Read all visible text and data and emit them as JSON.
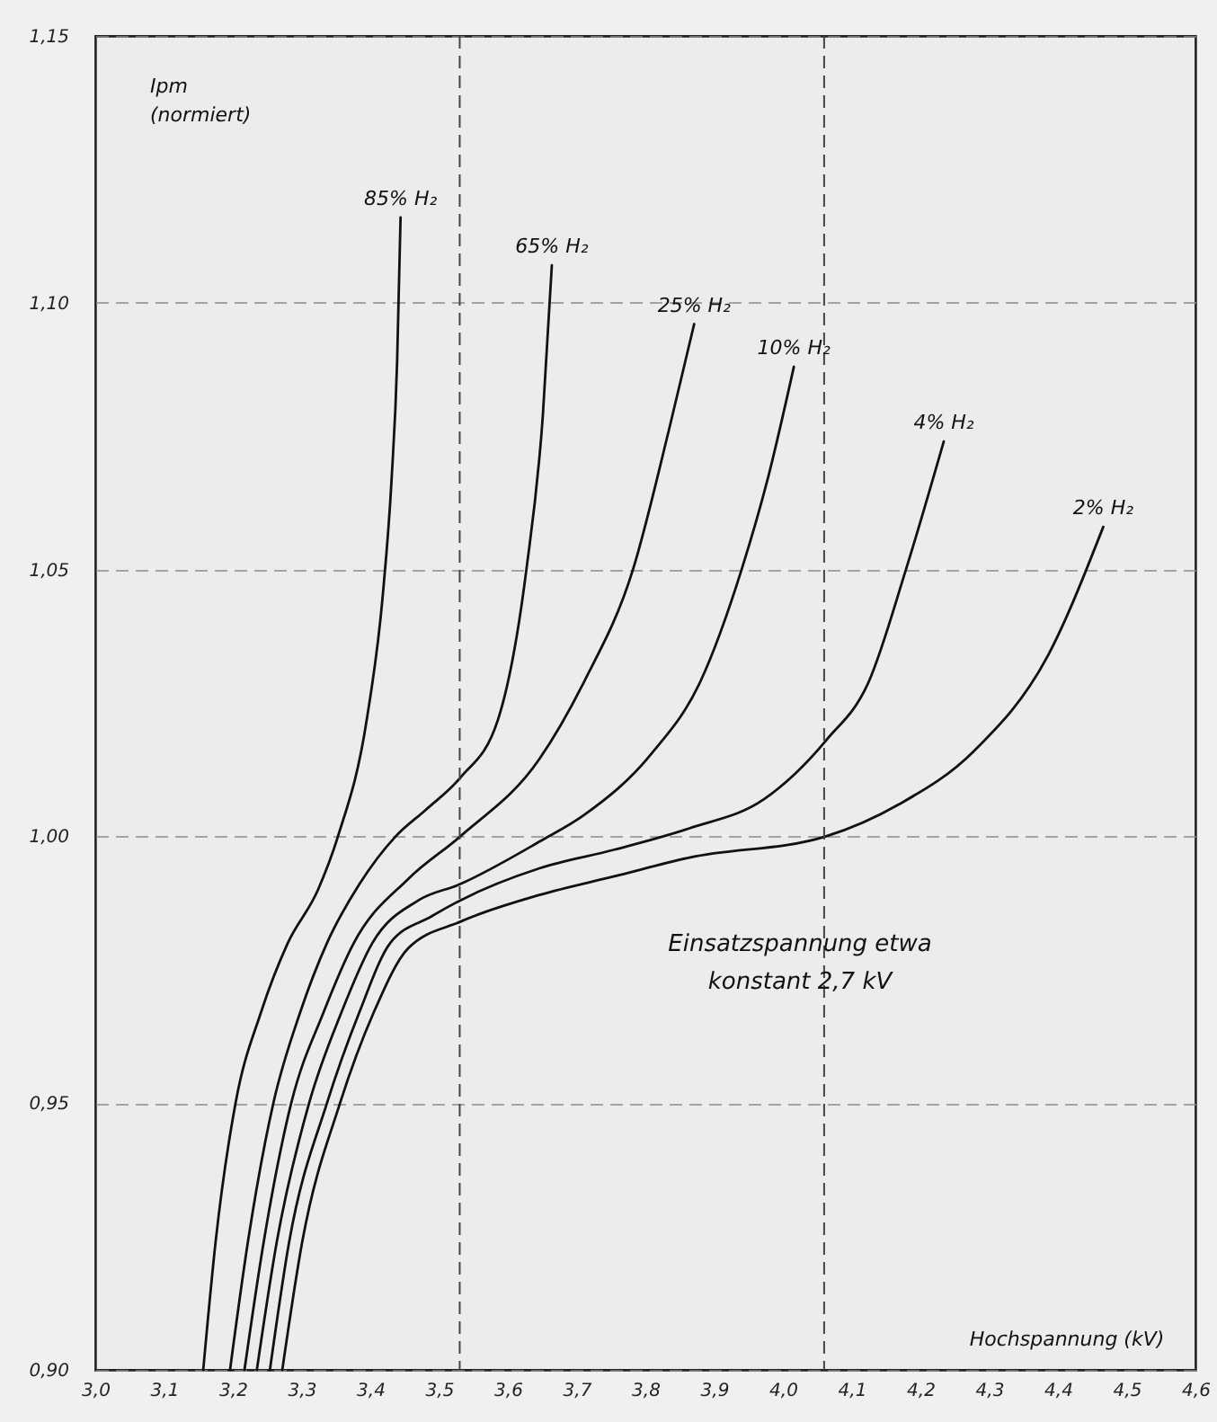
{
  "chart_data": {
    "type": "line",
    "xlabel": "Hochspannung (kV)",
    "ylabel": "Ipm (normiert)",
    "annotations": [
      "Einsatzspannung etwa konstant 2,7 kV"
    ],
    "xlim": [
      3.0,
      4.6
    ],
    "ylim": [
      0.9,
      1.15
    ],
    "xticks": [
      {
        "value": 3.0,
        "label": "3,0"
      },
      {
        "value": 3.1,
        "label": "3,1"
      },
      {
        "value": 3.2,
        "label": "3,2"
      },
      {
        "value": 3.3,
        "label": "3,3"
      },
      {
        "value": 3.4,
        "label": "3,4"
      },
      {
        "value": 3.5,
        "label": "3,5"
      },
      {
        "value": 3.6,
        "label": "3,6"
      },
      {
        "value": 3.7,
        "label": "3,7"
      },
      {
        "value": 3.8,
        "label": "3,8"
      },
      {
        "value": 3.9,
        "label": "3,9"
      },
      {
        "value": 4.0,
        "label": "4,0"
      },
      {
        "value": 4.1,
        "label": "4,1"
      },
      {
        "value": 4.2,
        "label": "4,2"
      },
      {
        "value": 4.3,
        "label": "4,3"
      },
      {
        "value": 4.4,
        "label": "4,4"
      },
      {
        "value": 4.5,
        "label": "4,5"
      },
      {
        "value": 4.6,
        "label": "4,6"
      }
    ],
    "yticks": [
      {
        "value": 0.9,
        "label": "0,90"
      },
      {
        "value": 0.95,
        "label": "0,95"
      },
      {
        "value": 1.0,
        "label": "1,00"
      },
      {
        "value": 1.05,
        "label": "1,05"
      },
      {
        "value": 1.1,
        "label": "1,10"
      },
      {
        "value": 1.15,
        "label": "1,15"
      }
    ],
    "grid": "y",
    "ref_lines": [
      {
        "axis": "x",
        "value": 3.53,
        "color": "#444444",
        "line_style": "dashed"
      },
      {
        "axis": "x",
        "value": 4.06,
        "color": "#444444",
        "line_style": "dashed"
      }
    ],
    "series": [
      {
        "name": "85% H₂",
        "color": "#111111",
        "x": [
          3.157,
          3.175,
          3.204,
          3.241,
          3.28,
          3.324,
          3.353,
          3.395,
          3.418,
          3.431,
          3.439,
          3.444
        ],
        "values": [
          0.9,
          0.924,
          0.95,
          0.967,
          0.98,
          0.99,
          1.0,
          1.022,
          1.045,
          1.067,
          1.089,
          1.116
        ]
      },
      {
        "name": "65% H₂",
        "color": "#111111",
        "x": [
          3.196,
          3.222,
          3.259,
          3.298,
          3.337,
          3.384,
          3.437,
          3.481,
          3.531,
          3.586,
          3.627,
          3.651,
          3.664
        ],
        "values": [
          0.9,
          0.924,
          0.95,
          0.967,
          0.98,
          0.991,
          1.0,
          1.005,
          1.011,
          1.022,
          1.05,
          1.079,
          1.107
        ]
      },
      {
        "name": "25% H₂",
        "color": "#111111",
        "x": [
          3.217,
          3.245,
          3.285,
          3.332,
          3.376,
          3.455,
          3.531,
          3.646,
          3.711,
          3.782,
          3.834,
          3.871
        ],
        "values": [
          0.9,
          0.924,
          0.95,
          0.967,
          0.98,
          0.992,
          1.0,
          1.0145,
          1.029,
          1.05,
          1.076,
          1.096
        ]
      },
      {
        "name": "10% H₂",
        "color": "#111111",
        "x": [
          3.235,
          3.264,
          3.311,
          3.358,
          3.403,
          3.47,
          3.53,
          3.646,
          3.711,
          3.809,
          3.88,
          3.94,
          3.978,
          4.016
        ],
        "values": [
          0.9,
          0.924,
          0.95,
          0.967,
          0.98,
          0.988,
          0.991,
          0.999,
          1.004,
          1.0155,
          1.029,
          1.05,
          1.067,
          1.088
        ]
      },
      {
        "name": "4% H₂",
        "color": "#111111",
        "x": [
          3.254,
          3.282,
          3.337,
          3.384,
          3.429,
          3.489,
          3.531,
          3.646,
          3.755,
          3.864,
          3.973,
          4.063,
          4.125,
          4.179,
          4.234
        ],
        "values": [
          0.9,
          0.924,
          0.95,
          0.967,
          0.98,
          0.985,
          0.988,
          0.994,
          0.9975,
          1.0015,
          1.007,
          1.018,
          1.029,
          1.05,
          1.074
        ]
      },
      {
        "name": "2% H₂",
        "color": "#111111",
        "x": [
          3.272,
          3.301,
          3.356,
          3.405,
          3.455,
          3.531,
          3.646,
          3.755,
          3.864,
          4.063,
          4.169,
          4.278,
          4.386,
          4.466
        ],
        "values": [
          0.9,
          0.924,
          0.95,
          0.967,
          0.979,
          0.984,
          0.989,
          0.9925,
          0.996,
          1.0,
          1.006,
          1.016,
          1.034,
          1.058
        ]
      }
    ]
  }
}
